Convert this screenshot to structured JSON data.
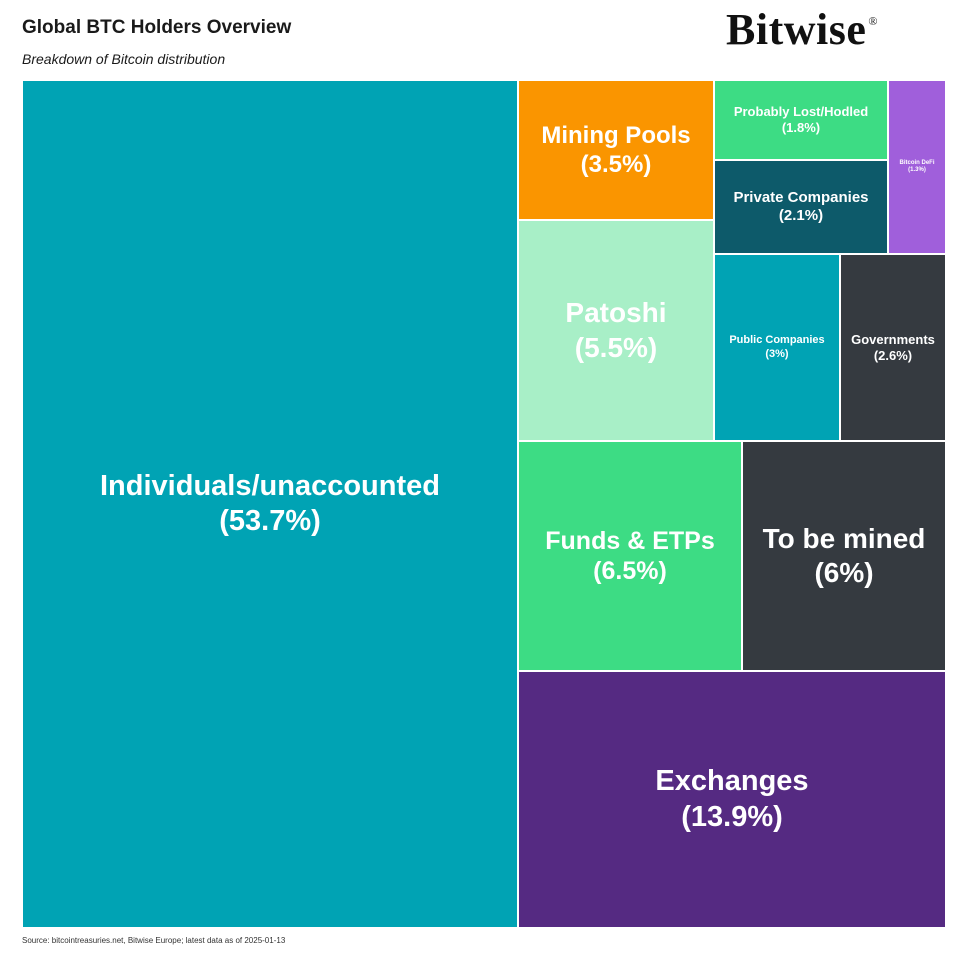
{
  "header": {
    "title": "Global BTC Holders Overview",
    "subtitle": "Breakdown of Bitcoin distribution",
    "logo_text": "Bitwise",
    "logo_mark": "®"
  },
  "footer": {
    "source": "Source: bitcointreasuries.net, Bitwise Europe; latest data as of 2025-01-13"
  },
  "chart_data": {
    "type": "treemap",
    "title": "Global BTC Holders Overview",
    "subtitle": "Breakdown of Bitcoin distribution",
    "unit": "%",
    "items": [
      {
        "name": "Individuals/unaccounted",
        "pct_label": "(53.7%)",
        "value": 53.7,
        "color": "#00A3B4",
        "text_color": "#FFFFFF"
      },
      {
        "name": "Exchanges",
        "pct_label": "(13.9%)",
        "value": 13.9,
        "color": "#552A82",
        "text_color": "#FFFFFF"
      },
      {
        "name": "Funds & ETPs",
        "pct_label": "(6.5%)",
        "value": 6.5,
        "color": "#3DDC84",
        "text_color": "#FFFFFF"
      },
      {
        "name": "To be mined",
        "pct_label": "(6%)",
        "value": 6.0,
        "color": "#353A40",
        "text_color": "#FFFFFF"
      },
      {
        "name": "Patoshi",
        "pct_label": "(5.5%)",
        "value": 5.5,
        "color": "#A8EFC7",
        "text_color": "#FFFFFF"
      },
      {
        "name": "Mining Pools",
        "pct_label": "(3.5%)",
        "value": 3.5,
        "color": "#FA9500",
        "text_color": "#FFFFFF"
      },
      {
        "name": "Public Companies",
        "pct_label": "(3%)",
        "value": 3.0,
        "color": "#00A3B4",
        "text_color": "#FFFFFF"
      },
      {
        "name": "Governments",
        "pct_label": "(2.6%)",
        "value": 2.6,
        "color": "#353A40",
        "text_color": "#FFFFFF"
      },
      {
        "name": "Private Companies",
        "pct_label": "(2.1%)",
        "value": 2.1,
        "color": "#0D5A6A",
        "text_color": "#FFFFFF"
      },
      {
        "name": "Probably Lost/Hodled",
        "pct_label": "(1.8%)",
        "value": 1.8,
        "color": "#3DDC84",
        "text_color": "#FFFFFF"
      },
      {
        "name": "Bitcoin DeFi",
        "pct_label": "(1.3%)",
        "value": 1.3,
        "color": "#A05FDB",
        "text_color": "#FFFFFF"
      }
    ]
  }
}
